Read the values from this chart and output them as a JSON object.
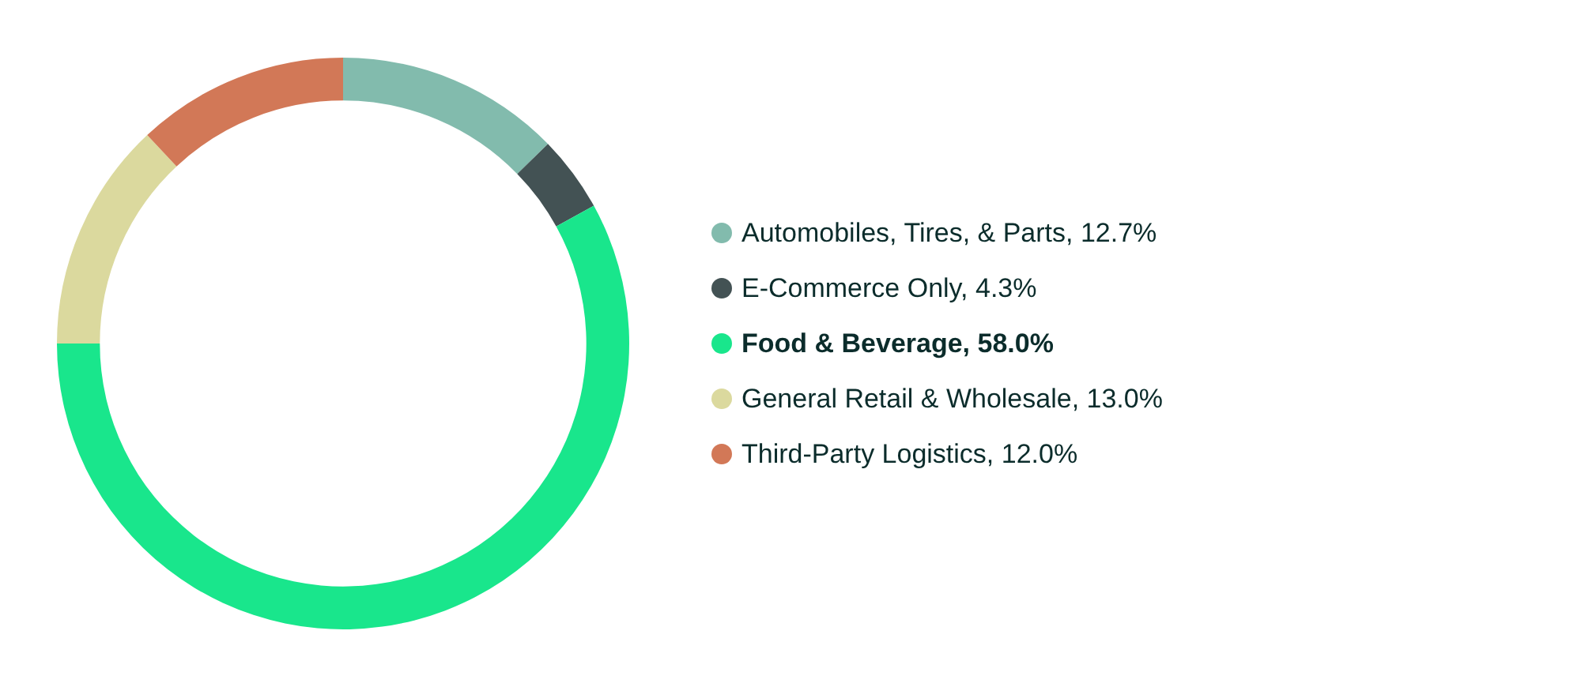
{
  "chart_data": {
    "type": "donut",
    "categories": [
      "Automobiles, Tires, & Parts",
      "E-Commerce Only",
      "Food & Beverage",
      "General Retail & Wholesale",
      "Third-Party Logistics"
    ],
    "values": [
      12.7,
      4.3,
      58.0,
      13.0,
      12.0
    ],
    "value_labels": [
      "12.7%",
      "4.3%",
      "58.0%",
      "13.0%",
      "12.0%"
    ],
    "colors": [
      "#82bbad",
      "#435254",
      "#19e68c",
      "#dbd99e",
      "#d27857"
    ],
    "legend": "right"
  }
}
